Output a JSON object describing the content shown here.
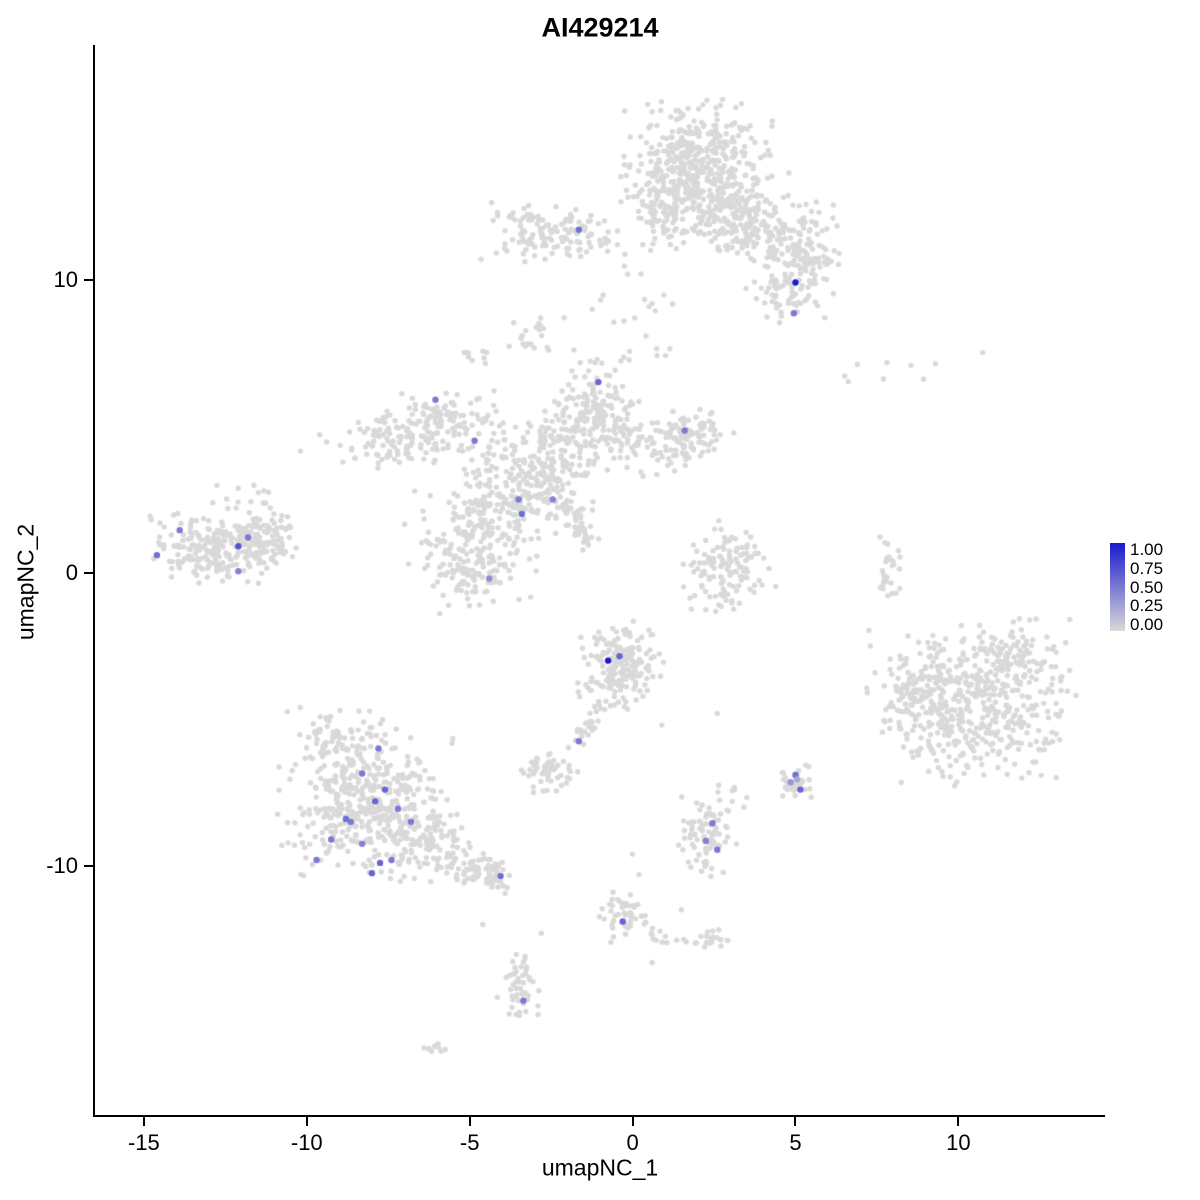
{
  "chart_data": {
    "type": "scatter",
    "title": "AI429214",
    "xlabel": "umapNC_1",
    "ylabel": "umapNC_2",
    "xlim": [
      -16.5,
      14.5
    ],
    "ylim": [
      -18.5,
      18.0
    ],
    "x_ticks": [
      -15,
      -10,
      -5,
      0,
      5,
      10
    ],
    "y_ticks": [
      10,
      0,
      -10
    ],
    "grid": false,
    "legend": {
      "position": "right",
      "tick_labels": [
        "1.00",
        "0.75",
        "0.50",
        "0.25",
        "0.00"
      ],
      "color_high": "#1a1acd",
      "color_low": "#d9d9d9"
    },
    "colors": {
      "base_point": "#d9d9d9",
      "max_expression": "#1a1acd",
      "axis": "#000000"
    },
    "clusters": [
      {
        "cx": 2.0,
        "cy": 14.2,
        "sx": 1.0,
        "sy": 0.85,
        "n": 320
      },
      {
        "cx": 1.2,
        "cy": 13.0,
        "sx": 0.7,
        "sy": 0.6,
        "n": 120
      },
      {
        "cx": 2.8,
        "cy": 12.3,
        "sx": 0.9,
        "sy": 0.7,
        "n": 170
      },
      {
        "cx": 4.3,
        "cy": 11.7,
        "sx": 0.9,
        "sy": 0.55,
        "n": 130
      },
      {
        "cx": 5.3,
        "cy": 10.7,
        "sx": 0.55,
        "sy": 0.45,
        "n": 85
      },
      {
        "cx": 4.8,
        "cy": 9.6,
        "sx": 0.65,
        "sy": 0.5,
        "n": 60
      },
      {
        "cx": 0.9,
        "cy": 12.0,
        "sx": 0.45,
        "sy": 0.5,
        "n": 45
      },
      {
        "cx": 0.2,
        "cy": 9.1,
        "sx": 0.7,
        "sy": 0.8,
        "n": 20
      },
      {
        "cx": -2.7,
        "cy": 11.6,
        "sx": 0.85,
        "sy": 0.45,
        "n": 110
      },
      {
        "cx": -1.2,
        "cy": 11.4,
        "sx": 0.55,
        "sy": 0.3,
        "n": 28
      },
      {
        "cx": -3.1,
        "cy": 8.1,
        "sx": 0.3,
        "sy": 0.35,
        "n": 20
      },
      {
        "cx": -4.8,
        "cy": 7.4,
        "sx": 0.22,
        "sy": 0.18,
        "n": 9
      },
      {
        "cx": -1.2,
        "cy": 5.6,
        "sx": 0.65,
        "sy": 0.85,
        "n": 165
      },
      {
        "cx": 0.7,
        "cy": 4.4,
        "sx": 0.95,
        "sy": 0.5,
        "n": 105
      },
      {
        "cx": 2.0,
        "cy": 4.8,
        "sx": 0.5,
        "sy": 0.4,
        "n": 50
      },
      {
        "cx": -3.3,
        "cy": 3.1,
        "sx": 0.95,
        "sy": 0.95,
        "n": 260
      },
      {
        "cx": -2.3,
        "cy": 4.3,
        "sx": 0.5,
        "sy": 0.5,
        "n": 55
      },
      {
        "cx": -6.0,
        "cy": 5.0,
        "sx": 0.95,
        "sy": 0.55,
        "n": 135
      },
      {
        "cx": -7.4,
        "cy": 4.6,
        "sx": 0.6,
        "sy": 0.45,
        "n": 65
      },
      {
        "cx": -5.0,
        "cy": 0.9,
        "sx": 0.9,
        "sy": 1.0,
        "n": 225
      },
      {
        "type": "streak",
        "x1": -2.3,
        "y1": 2.7,
        "x2": -1.3,
        "y2": 0.9,
        "n": 40,
        "jitter": 0.18
      },
      {
        "cx": -9.1,
        "cy": 4.3,
        "sx": 0.7,
        "sy": 0.3,
        "n": 7
      },
      {
        "cx": -12.6,
        "cy": 0.9,
        "sx": 1.05,
        "sy": 0.55,
        "n": 255
      },
      {
        "cx": -11.3,
        "cy": 1.3,
        "sx": 0.5,
        "sy": 0.3,
        "n": 45
      },
      {
        "cx": -12.0,
        "cy": 2.4,
        "sx": 0.5,
        "sy": 0.3,
        "n": 16
      },
      {
        "cx": 2.9,
        "cy": 0.2,
        "sx": 0.65,
        "sy": 0.75,
        "n": 125
      },
      {
        "cx": 7.9,
        "cy": 0.1,
        "sx": 0.16,
        "sy": 0.7,
        "n": 28
      },
      {
        "cx": 8.6,
        "cy": 6.9,
        "sx": 1.2,
        "sy": 0.3,
        "n": 8
      },
      {
        "cx": 10.4,
        "cy": -4.4,
        "sx": 1.4,
        "sy": 1.25,
        "n": 520
      },
      {
        "cx": 8.4,
        "cy": -4.3,
        "sx": 0.45,
        "sy": 0.7,
        "n": 55
      },
      {
        "cx": 11.8,
        "cy": -2.9,
        "sx": 0.55,
        "sy": 0.45,
        "n": 55
      },
      {
        "cx": -0.4,
        "cy": -3.2,
        "sx": 0.6,
        "sy": 0.7,
        "n": 185
      },
      {
        "type": "streak",
        "x1": -1.0,
        "y1": -4.6,
        "x2": -1.7,
        "y2": -5.8,
        "n": 24,
        "jitter": 0.16
      },
      {
        "cx": -2.5,
        "cy": -6.8,
        "sx": 0.45,
        "sy": 0.4,
        "n": 60
      },
      {
        "cx": -8.1,
        "cy": -7.9,
        "sx": 1.25,
        "sy": 1.15,
        "n": 460
      },
      {
        "cx": -8.9,
        "cy": -5.7,
        "sx": 0.75,
        "sy": 0.5,
        "n": 65
      },
      {
        "cx": -6.3,
        "cy": -9.3,
        "sx": 0.8,
        "sy": 0.6,
        "n": 85
      },
      {
        "type": "streak",
        "x1": -5.6,
        "y1": -9.9,
        "x2": -4.3,
        "y2": -10.3,
        "n": 45,
        "jitter": 0.25
      },
      {
        "cx": -4.2,
        "cy": -10.3,
        "sx": 0.3,
        "sy": 0.28,
        "n": 30
      },
      {
        "cx": 2.3,
        "cy": -9.0,
        "sx": 0.45,
        "sy": 0.6,
        "n": 80
      },
      {
        "cx": 3.0,
        "cy": -7.4,
        "sx": 0.35,
        "sy": 0.35,
        "n": 9
      },
      {
        "cx": 5.05,
        "cy": -7.2,
        "sx": 0.24,
        "sy": 0.3,
        "n": 40
      },
      {
        "cx": -0.25,
        "cy": -11.8,
        "sx": 0.35,
        "sy": 0.4,
        "n": 45
      },
      {
        "type": "streak",
        "x1": 0.3,
        "y1": -12.2,
        "x2": 1.8,
        "y2": -12.5,
        "n": 12,
        "jitter": 0.15
      },
      {
        "cx": 2.4,
        "cy": -12.5,
        "sx": 0.3,
        "sy": 0.2,
        "n": 20
      },
      {
        "cx": -3.5,
        "cy": -14.1,
        "sx": 0.3,
        "sy": 0.55,
        "n": 50
      },
      {
        "cx": -6.0,
        "cy": -16.2,
        "sx": 0.3,
        "sy": 0.18,
        "n": 10
      }
    ],
    "singles": [
      [
        -1.8,
        7.6
      ],
      [
        -2.1,
        8.7
      ],
      [
        0.9,
        -5.2
      ],
      [
        2.6,
        -4.8
      ],
      [
        0.2,
        -10.3
      ],
      [
        -0.6,
        -10.9
      ],
      [
        6.9,
        7.1
      ],
      [
        7.3,
        -2.5
      ],
      [
        -10.2,
        -4.6
      ],
      [
        0.6,
        -13.3
      ],
      [
        -2.8,
        -12.3
      ],
      [
        5.9,
        8.7
      ],
      [
        -4.6,
        -12.0
      ],
      [
        1.5,
        -11.5
      ],
      [
        0.0,
        -9.6
      ]
    ],
    "expressing_cells": [
      [
        5.0,
        9.9,
        1.0
      ],
      [
        4.95,
        8.85,
        0.5
      ],
      [
        -1.65,
        11.7,
        0.55
      ],
      [
        -1.05,
        6.5,
        0.6
      ],
      [
        -6.05,
        5.9,
        0.5
      ],
      [
        -4.85,
        4.5,
        0.5
      ],
      [
        1.6,
        4.85,
        0.5
      ],
      [
        -3.5,
        2.5,
        0.5
      ],
      [
        -2.45,
        2.5,
        0.45
      ],
      [
        -3.4,
        2.0,
        0.55
      ],
      [
        -4.4,
        -0.2,
        0.4
      ],
      [
        -13.9,
        1.45,
        0.5
      ],
      [
        -14.6,
        0.6,
        0.55
      ],
      [
        -12.1,
        0.9,
        0.7
      ],
      [
        -11.8,
        1.2,
        0.5
      ],
      [
        -12.1,
        0.05,
        0.45
      ],
      [
        -0.75,
        -3.0,
        1.0
      ],
      [
        -0.4,
        -2.85,
        0.6
      ],
      [
        -1.65,
        -5.75,
        0.5
      ],
      [
        -7.8,
        -6.0,
        0.5
      ],
      [
        -8.3,
        -6.85,
        0.5
      ],
      [
        -7.6,
        -7.4,
        0.6
      ],
      [
        -7.9,
        -7.8,
        0.6
      ],
      [
        -8.8,
        -8.4,
        0.55
      ],
      [
        -9.25,
        -9.1,
        0.5
      ],
      [
        -8.3,
        -9.25,
        0.45
      ],
      [
        -6.8,
        -8.5,
        0.5
      ],
      [
        -9.7,
        -9.8,
        0.5
      ],
      [
        -7.75,
        -9.9,
        0.6
      ],
      [
        -8.0,
        -10.25,
        0.6
      ],
      [
        -7.4,
        -9.8,
        0.5
      ],
      [
        -8.65,
        -8.5,
        0.5
      ],
      [
        -7.2,
        -8.05,
        0.5
      ],
      [
        -4.05,
        -10.35,
        0.55
      ],
      [
        2.45,
        -8.55,
        0.5
      ],
      [
        2.25,
        -9.15,
        0.45
      ],
      [
        2.6,
        -9.45,
        0.5
      ],
      [
        5.0,
        -6.9,
        0.55
      ],
      [
        5.15,
        -7.4,
        0.6
      ],
      [
        4.85,
        -7.15,
        0.35
      ],
      [
        5.05,
        -7.05,
        0.25
      ],
      [
        -0.3,
        -11.9,
        0.6
      ],
      [
        -3.35,
        -14.6,
        0.5
      ]
    ]
  }
}
